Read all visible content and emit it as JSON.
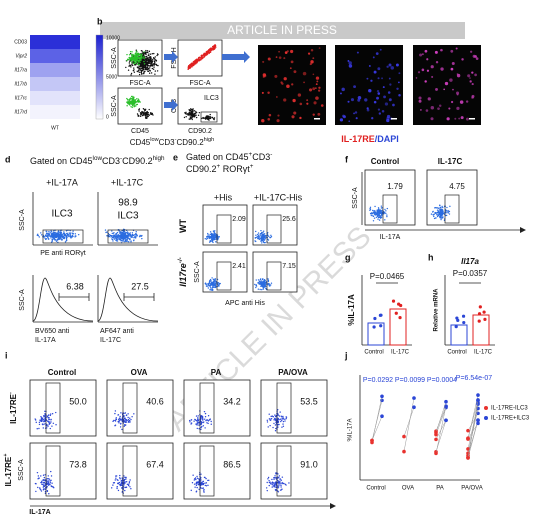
{
  "watermark": "ARTICLE IN PRESS",
  "panel_letters": {
    "b": "b",
    "d": "d",
    "e": "e",
    "f": "f",
    "g": "g",
    "h": "h",
    "i": "i",
    "j": "j"
  },
  "panel_a": {
    "genes": [
      "CD03",
      "Vipr2",
      "Il17ra",
      "Il17rb",
      "Il17rc",
      "Il17rd"
    ],
    "colorbar": [
      "10000",
      "5000",
      "0"
    ],
    "column": "WT"
  },
  "panel_b": {
    "plot1": {
      "y": "SSC-A",
      "x": "FSC-A"
    },
    "plot2": {
      "y": "FSC-H",
      "x": "FSC-A"
    },
    "plot3": {
      "y": "SSC-A",
      "x": "CD45"
    },
    "plot4": {
      "y": "CD3",
      "x": "CD90.2",
      "gate": "ILC3"
    },
    "caption": [
      {
        "text": "CD45"
      },
      {
        "text": "low",
        "style": "sup"
      },
      {
        "text": "CD3"
      },
      {
        "text": "-",
        "style": "sup"
      },
      {
        "text": "CD90.2"
      },
      {
        "text": "high",
        "style": "sup"
      }
    ]
  },
  "panel_c": {
    "label_red": "IL-17RE",
    "label_blue": "/DAPI"
  },
  "panel_d": {
    "title": [
      {
        "text": "Gated on CD45"
      },
      {
        "text": "low",
        "style": "sup"
      },
      {
        "text": "CD3"
      },
      {
        "text": "-",
        "style": "sup"
      },
      {
        "text": "CD90.2"
      },
      {
        "text": "high",
        "style": "sup"
      }
    ],
    "columns": [
      "+IL-17A",
      "+IL-17C"
    ],
    "gate_left": "ILC3",
    "value_right": "98.9",
    "gate_right": "ILC3",
    "y_top": "SSC-A",
    "x_top": "PE anti RORγt",
    "hist_values": [
      "6.38",
      "27.5"
    ],
    "y_bottom": "SSC-A",
    "x_bottom": [
      [
        "BV650 anti",
        "IL-17A"
      ],
      [
        "AF647 anti",
        "IL-17C"
      ]
    ]
  },
  "panel_e": {
    "title": [
      [
        {
          "text": "Gated on CD45"
        },
        {
          "text": "+",
          "style": "sup"
        },
        {
          "text": "CD3"
        },
        {
          "text": "-",
          "style": "sup"
        }
      ],
      [
        {
          "text": "CD90.2"
        },
        {
          "text": "+",
          "style": "sup"
        },
        {
          "text": " RORγt"
        },
        {
          "text": "+",
          "style": "sup"
        }
      ]
    ],
    "columns": [
      "+His",
      "+IL-17C-His"
    ],
    "rows": [
      [
        {
          "text": "WT"
        }
      ],
      [
        {
          "text": "Il17re"
        },
        {
          "text": "-/-",
          "style": "sup"
        }
      ]
    ],
    "values": [
      [
        "2.09",
        "25.6"
      ],
      [
        "2.41",
        "7.15"
      ]
    ],
    "y": "SSC-A",
    "x": "APC anti His"
  },
  "panel_f": {
    "columns": [
      "Control",
      "IL-17C"
    ],
    "values": [
      "1.79",
      "4.75"
    ],
    "y": "SSC-A",
    "x": "IL-17A"
  },
  "panel_g": {
    "p": "P=0.0465",
    "y": "%IL-17A",
    "categories": [
      "Control",
      "IL-17C"
    ]
  },
  "panel_h": {
    "title": "Il17a",
    "p": "P=0.0357",
    "y": "Relative mRNA",
    "categories": [
      "Control",
      "IL-17C"
    ]
  },
  "panel_i": {
    "columns": [
      "Control",
      "OVA",
      "PA",
      "PA/OVA"
    ],
    "rows": [
      [
        {
          "text": "IL-17RE"
        },
        {
          "text": "-",
          "style": "sup"
        }
      ],
      [
        {
          "text": "IL-17RE"
        },
        {
          "text": "+",
          "style": "sup"
        }
      ]
    ],
    "values": [
      [
        "50.0",
        "40.6",
        "34.2",
        "53.5"
      ],
      [
        "73.8",
        "67.4",
        "86.5",
        "91.0"
      ]
    ],
    "y": "SSC-A",
    "x": "IL-17A"
  },
  "panel_j": {
    "p": [
      "P=0.0292",
      "P=0.0099",
      "P=0.0004",
      "P=6.54e-07"
    ],
    "y": "%IL-17A",
    "categories": [
      "Control",
      "OVA",
      "PA",
      "PA/OVA"
    ],
    "legend": [
      {
        "name": "IL-17RE-ILC3",
        "color": "#e8322e"
      },
      {
        "name": "IL-17RE+ILC3",
        "color": "#2b46d6"
      }
    ]
  }
}
